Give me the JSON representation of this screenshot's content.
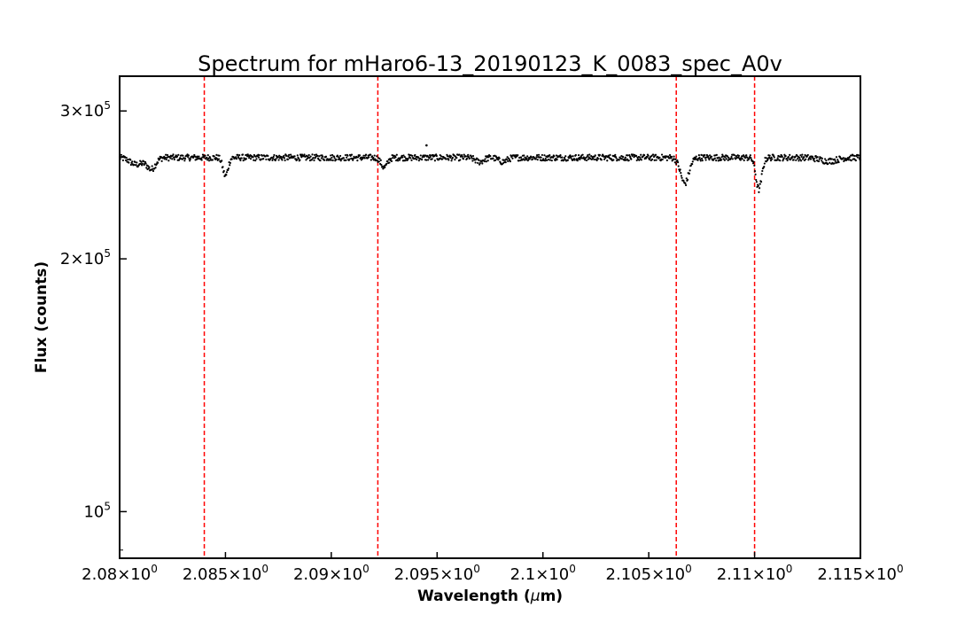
{
  "chart_data": {
    "type": "scatter",
    "title": "Spectrum for mHaro6-13_20190123_K_0083_spec_A0v",
    "xlabel": "Wavelength (μm)",
    "ylabel": "Flux (counts)",
    "xlim": [
      2.08,
      2.115
    ],
    "ylim": [
      88000,
      330000
    ],
    "yscale": "log",
    "grid": false,
    "legend": "none",
    "marker_color": "#000000",
    "vline_color": "#ff0000",
    "x_ticks": [
      {
        "value": 2.08,
        "mantissa": "2.08"
      },
      {
        "value": 2.085,
        "mantissa": "2.085"
      },
      {
        "value": 2.09,
        "mantissa": "2.09"
      },
      {
        "value": 2.095,
        "mantissa": "2.095"
      },
      {
        "value": 2.1,
        "mantissa": "2.1"
      },
      {
        "value": 2.105,
        "mantissa": "2.105"
      },
      {
        "value": 2.11,
        "mantissa": "2.11"
      },
      {
        "value": 2.115,
        "mantissa": "2.115"
      }
    ],
    "x_tick_exponent": "0",
    "y_ticks": [
      {
        "value": 100000,
        "mantissa": "",
        "exponent": "5"
      },
      {
        "value": 200000,
        "mantissa": "2",
        "exponent": "5"
      },
      {
        "value": 300000,
        "mantissa": "3",
        "exponent": "5"
      }
    ],
    "y_minor_ticks": [
      90000
    ],
    "vlines": [
      2.084,
      2.0922,
      2.1063,
      2.11
    ],
    "continuum": 264000,
    "x_range_points": [
      2.08,
      2.115
    ],
    "n_points": 1300,
    "absorption_features": [
      {
        "center": 2.0808,
        "depth": 5000,
        "width": 0.0003
      },
      {
        "center": 2.0815,
        "depth": 8000,
        "width": 0.0002
      },
      {
        "center": 2.085,
        "depth": 13000,
        "width": 0.00012
      },
      {
        "center": 2.0925,
        "depth": 7000,
        "width": 0.00015
      },
      {
        "center": 2.097,
        "depth": 3000,
        "width": 0.0002
      },
      {
        "center": 2.0981,
        "depth": 3000,
        "width": 0.0002
      },
      {
        "center": 2.1067,
        "depth": 18000,
        "width": 0.0002
      },
      {
        "center": 2.1102,
        "depth": 22000,
        "width": 0.00014
      },
      {
        "center": 2.1135,
        "depth": 2500,
        "width": 0.0004
      }
    ],
    "outliers": [
      {
        "x": 2.0945,
        "y": 273000
      }
    ]
  }
}
